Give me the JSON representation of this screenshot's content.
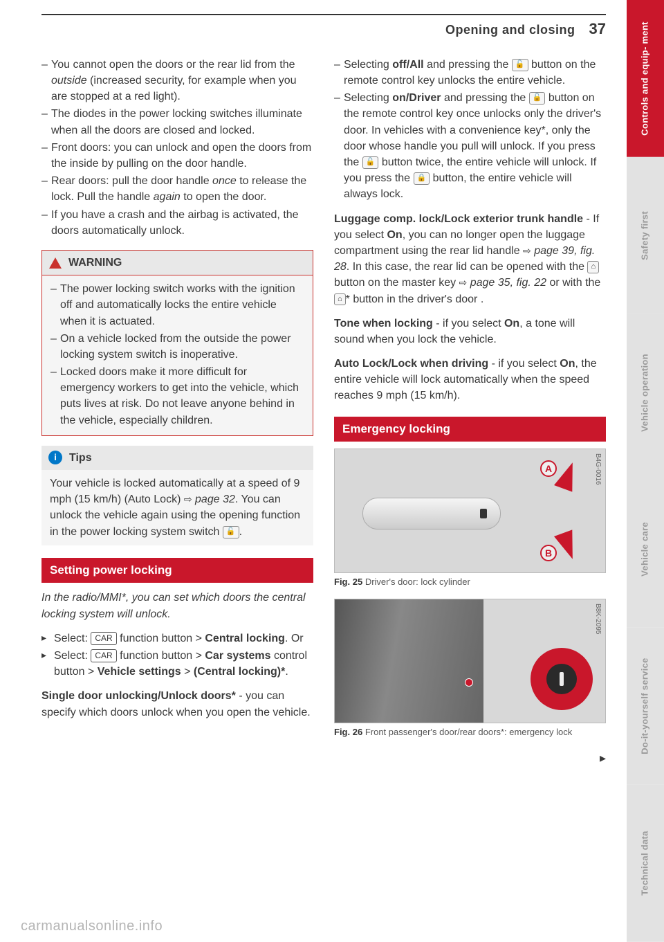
{
  "header": {
    "title": "Opening and closing",
    "page": "37"
  },
  "left": {
    "bullets": [
      "You cannot open the doors or the rear lid from the <em class=\"i\">outside</em> (increased security, for example when you are stopped at a red light).",
      "The diodes in the power locking switches illuminate when all the doors are closed and locked.",
      "Front doors: you can unlock and open the doors from the inside by pulling on the door handle.",
      "Rear doors: pull the door handle <em class=\"i\">once</em> to release the lock. Pull the handle <em class=\"i\">again</em> to open the door.",
      "If you have a crash and the airbag is activated, the doors automatically unlock."
    ],
    "warning": {
      "title": "WARNING",
      "items": [
        "The power locking switch works with the ignition off and automatically locks the entire vehicle when it is actuated.",
        "On a vehicle locked from the outside the power locking system switch is inoperative.",
        "Locked doors make it more difficult for emergency workers to get into the vehicle, which puts lives at risk. Do not leave anyone behind in the vehicle, especially children."
      ]
    },
    "tips": {
      "title": "Tips",
      "body": "Your vehicle is locked automatically at a speed of 9 mph (15 km/h) (Auto Lock) <span class=\"ref-arrow\">⇨</span> <em class=\"i\">page 32</em>. You can unlock the vehicle again using the opening function in the power locking system switch <span class=\"key-icon\">🔓</span>."
    },
    "section": {
      "heading": "Setting power locking",
      "intro": "In the radio/MMI*, you can set which doors the central locking system will unlock.",
      "steps": [
        "Select: <span class=\"car-btn\">CAR</span> function button &gt; <b>Central locking</b>. Or",
        "Select: <span class=\"car-btn\">CAR</span> function button &gt; <b>Car systems</b> control button &gt; <b>Vehicle settings</b> &gt; <b>(Central locking)*</b>."
      ],
      "single": "<b>Single door unlocking/Unlock doors*</b> - you can specify which doors unlock when you open the vehicle."
    }
  },
  "right": {
    "bullets": [
      "Selecting <b>off/All</b> and pressing the <span class=\"key-icon\">🔓</span> button on the remote control key unlocks the entire vehicle.",
      "Selecting <b>on/Driver</b> and pressing the <span class=\"key-icon\">🔓</span> button on the remote control key once unlocks only the driver's door. In vehicles with a convenience key*, only the door whose handle you pull will unlock. If you press the <span class=\"key-icon\">🔓</span> button twice, the entire vehicle will unlock. If you press the <span class=\"key-icon\">🔒</span> button, the entire vehicle will always lock."
    ],
    "luggage": "<b>Luggage comp. lock/Lock exterior trunk handle</b> - If you select <b>On</b>, you can no longer open the luggage compartment using the rear lid handle <span class=\"ref-arrow\">⇨</span> <em class=\"i\">page 39, fig. 28</em>. In this case, the rear lid can be opened with the <span class=\"key-icon\">⌂</span> button on the master key <span class=\"ref-arrow\">⇨</span> <em class=\"i\">page 35, fig. 22</em> or with the <span class=\"key-icon\">⌂</span>* button in the driver's door .",
    "tone": "<b>Tone when locking</b> - if you select <b>On</b>, a tone will sound when you lock the vehicle.",
    "auto": "<b>Auto Lock/Lock when driving</b> - if you select <b>On</b>, the entire vehicle will lock automatically when the speed reaches 9 mph (15 km/h).",
    "emergency_heading": "Emergency locking",
    "fig25": {
      "tag": "B4G-0016",
      "caption_label": "Fig. 25",
      "caption_text": "Driver's door: lock cylinder",
      "markerA": "A",
      "markerB": "B"
    },
    "fig26": {
      "tag": "B8K-2095",
      "caption_label": "Fig. 26",
      "caption_text": "Front passenger's door/rear doors*: emergency lock"
    }
  },
  "tabs": [
    {
      "label": "Controls and equip-\nment",
      "active": true
    },
    {
      "label": "Safety first",
      "active": false
    },
    {
      "label": "Vehicle operation",
      "active": false
    },
    {
      "label": "Vehicle care",
      "active": false
    },
    {
      "label": "Do-it-yourself\nservice",
      "active": false
    },
    {
      "label": "Technical data",
      "active": false
    }
  ],
  "watermark": "carmanualsonline.info"
}
